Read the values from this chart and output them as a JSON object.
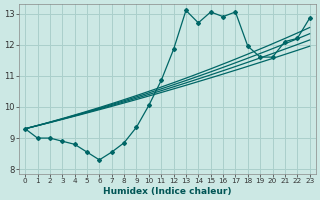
{
  "xlabel": "Humidex (Indice chaleur)",
  "bg_color": "#cce8e4",
  "grid_color": "#aacfcb",
  "line_color": "#006666",
  "xlim": [
    -0.5,
    23.5
  ],
  "ylim": [
    7.85,
    13.3
  ],
  "xticks": [
    0,
    1,
    2,
    3,
    4,
    5,
    6,
    7,
    8,
    9,
    10,
    11,
    12,
    13,
    14,
    15,
    16,
    17,
    18,
    19,
    20,
    21,
    22,
    23
  ],
  "yticks": [
    8,
    9,
    10,
    11,
    12,
    13
  ],
  "jagged_x": [
    0,
    1,
    2,
    3,
    4,
    5,
    6,
    7,
    8,
    9,
    10,
    11,
    12,
    13,
    14,
    15,
    16,
    17,
    18,
    19,
    20,
    21,
    22,
    23
  ],
  "jagged_y": [
    9.3,
    9.0,
    9.0,
    8.9,
    8.8,
    8.55,
    8.3,
    8.55,
    8.85,
    9.35,
    10.05,
    10.85,
    11.85,
    13.1,
    12.7,
    13.05,
    12.9,
    13.05,
    11.95,
    11.6,
    11.6,
    12.1,
    12.2,
    12.85
  ],
  "trend1_x": [
    0,
    23
  ],
  "trend1_y": [
    9.25,
    12.55
  ],
  "trend2_x": [
    0,
    23
  ],
  "trend2_y": [
    9.3,
    12.35
  ],
  "trend3_x": [
    0,
    23
  ],
  "trend3_y": [
    9.35,
    12.15
  ],
  "trend4_x": [
    0,
    23
  ],
  "trend4_y": [
    9.4,
    11.95
  ]
}
